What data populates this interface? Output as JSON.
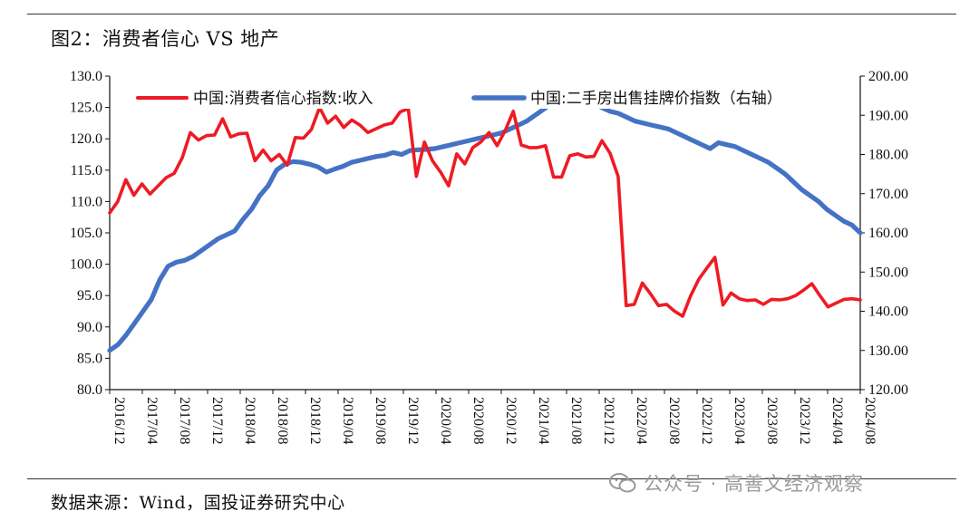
{
  "figure": {
    "title": "图2：消费者信心 VS 地产",
    "source": "数据来源：Wind，国投证券研究中心"
  },
  "watermark": {
    "text": "公众号 · 高善文经济观察",
    "icon": "wechat-icon"
  },
  "colors": {
    "series1": "#ee1b24",
    "series2": "#4472c4",
    "axis": "#111111"
  },
  "chart_data": {
    "type": "line",
    "title": "消费者信心 VS 地产",
    "x_ticks": [
      "2016/12",
      "2017/04",
      "2017/08",
      "2017/12",
      "2018/04",
      "2018/08",
      "2018/12",
      "2019/04",
      "2019/08",
      "2019/12",
      "2020/04",
      "2020/08",
      "2020/12",
      "2021/04",
      "2021/08",
      "2021/12",
      "2022/04",
      "2022/08",
      "2022/12",
      "2023/04",
      "2023/08",
      "2023/12",
      "2024/04",
      "2024/08"
    ],
    "y_left": {
      "min": 80.0,
      "max": 130.0,
      "step": 5.0,
      "ticks": [
        "80.0",
        "85.0",
        "90.0",
        "95.0",
        "100.0",
        "105.0",
        "110.0",
        "115.0",
        "120.0",
        "125.0",
        "130.0"
      ]
    },
    "y_right": {
      "min": 120.0,
      "max": 200.0,
      "step": 10.0,
      "ticks": [
        "120.00",
        "130.00",
        "140.00",
        "150.00",
        "160.00",
        "170.00",
        "180.00",
        "190.00",
        "200.00"
      ]
    },
    "legend_position": "top",
    "series": [
      {
        "name": "中国:消费者信心指数:收入",
        "axis": "left",
        "values": [
          108.2,
          110.0,
          113.5,
          111.0,
          112.8,
          111.2,
          112.5,
          113.8,
          114.5,
          117.0,
          121.0,
          119.8,
          120.5,
          120.6,
          123.2,
          120.3,
          120.8,
          120.9,
          116.5,
          118.2,
          116.5,
          117.5,
          115.8,
          120.2,
          120.1,
          121.5,
          125.0,
          122.5,
          123.6,
          121.8,
          123.0,
          122.2,
          121.0,
          121.6,
          122.2,
          122.5,
          124.3,
          124.8,
          114.0,
          119.5,
          116.5,
          114.7,
          112.5,
          117.6,
          116.0,
          118.6,
          119.5,
          121.0,
          118.9,
          121.3,
          124.4,
          119.0,
          118.6,
          118.6,
          118.9,
          113.9,
          113.9,
          117.3,
          117.6,
          117.1,
          117.2,
          119.7,
          117.7,
          114.0,
          93.4,
          93.6,
          97.0,
          95.3,
          93.4,
          93.6,
          92.5,
          91.7,
          95.0,
          97.6,
          99.4,
          101.1,
          93.5,
          95.4,
          94.5,
          94.2,
          94.3,
          93.6,
          94.4,
          94.3,
          94.5,
          95.0,
          95.9,
          96.9,
          95.0,
          93.2,
          93.8,
          94.4,
          94.5,
          94.3
        ]
      },
      {
        "name": "中国:二手房出售挂牌价指数（右轴）",
        "axis": "right",
        "values": [
          130.0,
          131.5,
          134.0,
          137.0,
          140.0,
          143.0,
          148.0,
          151.5,
          152.5,
          153.0,
          154.0,
          155.5,
          157.0,
          158.5,
          159.5,
          160.5,
          163.5,
          166.0,
          169.5,
          172.0,
          176.0,
          177.5,
          178.2,
          178.0,
          177.5,
          176.8,
          175.5,
          176.3,
          177.0,
          178.0,
          178.5,
          179.0,
          179.5,
          179.8,
          180.5,
          180.0,
          181.0,
          181.2,
          181.3,
          181.5,
          182.0,
          182.5,
          183.0,
          183.5,
          184.0,
          184.5,
          185.0,
          185.5,
          186.5,
          187.5,
          188.5,
          190.0,
          191.5,
          193.0,
          194.0,
          194.5,
          194.0,
          193.5,
          193.0,
          192.0,
          191.0,
          190.5,
          189.5,
          188.5,
          188.0,
          187.5,
          187.0,
          186.5,
          185.5,
          184.5,
          183.5,
          182.5,
          181.5,
          183.0,
          182.5,
          182.0,
          181.0,
          180.0,
          179.0,
          178.0,
          176.5,
          175.0,
          173.0,
          171.0,
          169.5,
          168.0,
          166.0,
          164.5,
          163.0,
          162.0,
          160.0
        ]
      }
    ]
  }
}
